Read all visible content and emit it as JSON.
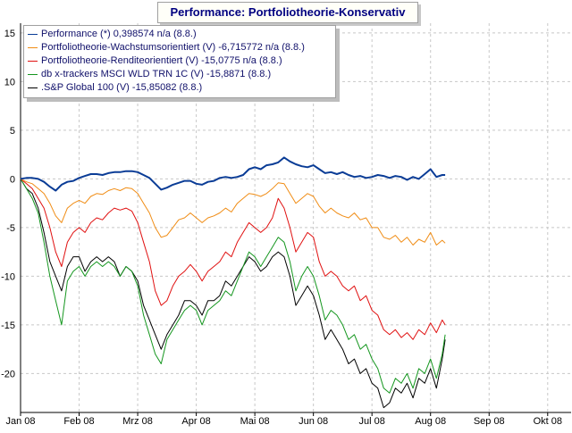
{
  "chart_data": {
    "type": "line",
    "title": "Performance: Portfoliotheorie-Konservativ",
    "xlabel": "",
    "ylabel": "",
    "x_tick_labels": [
      "Jan 08",
      "Feb 08",
      "Mrz 08",
      "Apr 08",
      "Mai 08",
      "Jun 08",
      "Jul 08",
      "Aug 08",
      "Sep 08",
      "Okt 08"
    ],
    "xlim": [
      0,
      9.4
    ],
    "ylim": [
      -24,
      16
    ],
    "y_ticks": [
      15,
      10,
      5,
      0,
      -5,
      -10,
      -15,
      -20
    ],
    "grid": true,
    "legend_position": "top-left",
    "series": [
      {
        "name": "Performance (*) 0,398574 n/a (8.8.)",
        "color": "#0a3c96",
        "x": [
          0,
          0.1,
          0.2,
          0.3,
          0.4,
          0.5,
          0.6,
          0.7,
          0.8,
          0.9,
          1.0,
          1.1,
          1.2,
          1.3,
          1.4,
          1.5,
          1.6,
          1.7,
          1.8,
          1.9,
          2.0,
          2.1,
          2.2,
          2.3,
          2.4,
          2.5,
          2.6,
          2.7,
          2.8,
          2.9,
          3.0,
          3.1,
          3.2,
          3.3,
          3.4,
          3.5,
          3.6,
          3.7,
          3.8,
          3.9,
          4.0,
          4.1,
          4.2,
          4.3,
          4.4,
          4.5,
          4.6,
          4.7,
          4.8,
          4.9,
          5.0,
          5.1,
          5.2,
          5.3,
          5.4,
          5.5,
          5.6,
          5.7,
          5.8,
          5.9,
          6.0,
          6.1,
          6.2,
          6.3,
          6.4,
          6.5,
          6.6,
          6.7,
          6.8,
          6.9,
          7.0,
          7.1,
          7.2,
          7.25
        ],
        "values": [
          0,
          0.1,
          0.1,
          0,
          -0.3,
          -0.8,
          -1.2,
          -0.6,
          -0.3,
          -0.2,
          0.1,
          0.3,
          0.5,
          0.5,
          0.4,
          0.6,
          0.7,
          0.7,
          0.8,
          0.8,
          0.7,
          0.4,
          0.1,
          -0.5,
          -1.1,
          -0.9,
          -0.6,
          -0.4,
          -0.2,
          -0.2,
          -0.5,
          -0.6,
          -0.3,
          -0.2,
          0.1,
          0.2,
          0.1,
          0.2,
          0.4,
          1.0,
          1.2,
          1.0,
          1.4,
          1.5,
          1.7,
          2.2,
          1.8,
          1.5,
          1.3,
          1.2,
          1.4,
          1.0,
          0.6,
          0.7,
          0.5,
          0.7,
          0.4,
          0.2,
          0.3,
          0.1,
          0.2,
          0.4,
          0.3,
          0.1,
          0.3,
          0.2,
          -0.1,
          0.2,
          0.0,
          0.5,
          1.0,
          0.2,
          0.4,
          0.4
        ]
      },
      {
        "name": "Portfoliotheorie-Wachstumsorientiert (V) -6,715772 n/a (8.8.)",
        "color": "#f08c14",
        "x": [
          0,
          0.1,
          0.2,
          0.3,
          0.4,
          0.5,
          0.6,
          0.7,
          0.8,
          0.9,
          1.0,
          1.1,
          1.2,
          1.3,
          1.4,
          1.5,
          1.6,
          1.7,
          1.8,
          1.9,
          2.0,
          2.1,
          2.2,
          2.3,
          2.4,
          2.5,
          2.6,
          2.7,
          2.8,
          2.9,
          3.0,
          3.1,
          3.2,
          3.3,
          3.4,
          3.5,
          3.6,
          3.7,
          3.8,
          3.9,
          4.0,
          4.1,
          4.2,
          4.3,
          4.4,
          4.5,
          4.6,
          4.7,
          4.8,
          4.9,
          5.0,
          5.1,
          5.2,
          5.3,
          5.4,
          5.5,
          5.6,
          5.7,
          5.8,
          5.9,
          6.0,
          6.1,
          6.2,
          6.3,
          6.4,
          6.5,
          6.6,
          6.7,
          6.8,
          6.9,
          7.0,
          7.1,
          7.2,
          7.25
        ],
        "values": [
          0,
          -0.3,
          -0.5,
          -1.0,
          -1.5,
          -2.5,
          -3.8,
          -4.5,
          -3.0,
          -2.5,
          -2.2,
          -2.5,
          -1.8,
          -1.5,
          -1.6,
          -1.2,
          -1.0,
          -1.2,
          -0.9,
          -1.0,
          -1.5,
          -2.5,
          -3.5,
          -5.0,
          -6.0,
          -5.8,
          -5.0,
          -4.2,
          -4.0,
          -3.5,
          -4.0,
          -4.5,
          -4.0,
          -3.8,
          -3.5,
          -3.0,
          -3.4,
          -2.5,
          -2.0,
          -1.5,
          -1.6,
          -1.8,
          -1.5,
          -1.0,
          -0.4,
          -0.5,
          -1.5,
          -2.5,
          -2.0,
          -1.5,
          -1.8,
          -2.8,
          -3.5,
          -3.0,
          -3.5,
          -3.8,
          -4.0,
          -3.5,
          -4.2,
          -4.0,
          -5.0,
          -5.0,
          -6.0,
          -6.2,
          -5.8,
          -6.5,
          -6.0,
          -6.8,
          -6.2,
          -6.5,
          -5.5,
          -6.8,
          -6.3,
          -6.6
        ]
      },
      {
        "name": "Portfoliotheorie-Renditeorientiert (V) -15,0775 n/a (8.8.)",
        "color": "#e01010",
        "x": [
          0,
          0.1,
          0.2,
          0.3,
          0.4,
          0.5,
          0.6,
          0.7,
          0.8,
          0.9,
          1.0,
          1.1,
          1.2,
          1.3,
          1.4,
          1.5,
          1.6,
          1.7,
          1.8,
          1.9,
          2.0,
          2.1,
          2.2,
          2.3,
          2.4,
          2.5,
          2.6,
          2.7,
          2.8,
          2.9,
          3.0,
          3.1,
          3.2,
          3.3,
          3.4,
          3.5,
          3.6,
          3.7,
          3.8,
          3.9,
          4.0,
          4.1,
          4.2,
          4.3,
          4.4,
          4.5,
          4.6,
          4.7,
          4.8,
          4.9,
          5.0,
          5.1,
          5.2,
          5.3,
          5.4,
          5.5,
          5.6,
          5.7,
          5.8,
          5.9,
          6.0,
          6.1,
          6.2,
          6.3,
          6.4,
          6.5,
          6.6,
          6.7,
          6.8,
          6.9,
          7.0,
          7.1,
          7.2,
          7.25
        ],
        "values": [
          0,
          -0.5,
          -1.0,
          -2.0,
          -3.0,
          -5.0,
          -7.5,
          -9.0,
          -6.5,
          -5.5,
          -5.0,
          -5.5,
          -4.5,
          -4.0,
          -4.2,
          -3.5,
          -3.0,
          -3.2,
          -3.0,
          -3.3,
          -4.5,
          -6.5,
          -8.5,
          -11.5,
          -13.0,
          -12.5,
          -11.0,
          -10.0,
          -9.5,
          -8.8,
          -9.5,
          -10.5,
          -9.5,
          -9.0,
          -8.5,
          -7.5,
          -8.0,
          -6.5,
          -5.5,
          -4.5,
          -5.0,
          -5.5,
          -5.0,
          -4.0,
          -2.0,
          -3.0,
          -5.0,
          -7.5,
          -6.5,
          -5.5,
          -6.0,
          -8.5,
          -10.0,
          -9.5,
          -10.0,
          -11.0,
          -11.5,
          -11.0,
          -12.5,
          -12.0,
          -13.5,
          -14.0,
          -15.5,
          -16.0,
          -15.5,
          -16.3,
          -15.8,
          -16.5,
          -15.5,
          -16.0,
          -14.8,
          -15.8,
          -14.5,
          -15.0
        ]
      },
      {
        "name": "db x-trackers MSCI WLD TRN 1C (V) -15,8871 (8.8.)",
        "color": "#14961e",
        "x": [
          0,
          0.1,
          0.2,
          0.3,
          0.4,
          0.5,
          0.6,
          0.7,
          0.8,
          0.9,
          1.0,
          1.1,
          1.2,
          1.3,
          1.4,
          1.5,
          1.6,
          1.7,
          1.8,
          1.9,
          2.0,
          2.1,
          2.2,
          2.3,
          2.4,
          2.5,
          2.6,
          2.7,
          2.8,
          2.9,
          3.0,
          3.1,
          3.2,
          3.3,
          3.4,
          3.5,
          3.6,
          3.7,
          3.8,
          3.9,
          4.0,
          4.1,
          4.2,
          4.3,
          4.4,
          4.5,
          4.6,
          4.7,
          4.8,
          4.9,
          5.0,
          5.1,
          5.2,
          5.3,
          5.4,
          5.5,
          5.6,
          5.7,
          5.8,
          5.9,
          6.0,
          6.1,
          6.2,
          6.3,
          6.4,
          6.5,
          6.6,
          6.7,
          6.8,
          6.9,
          7.0,
          7.1,
          7.2,
          7.25
        ],
        "values": [
          0,
          -1.0,
          -2.0,
          -3.5,
          -6.5,
          -10.0,
          -12.5,
          -15.0,
          -10.5,
          -9.5,
          -9.0,
          -10.0,
          -9.0,
          -8.5,
          -9.0,
          -8.5,
          -9.0,
          -10.0,
          -9.0,
          -9.5,
          -11.0,
          -14.0,
          -16.0,
          -18.0,
          -19.0,
          -16.5,
          -15.5,
          -14.5,
          -13.5,
          -13.0,
          -13.5,
          -15.0,
          -13.5,
          -13.0,
          -12.5,
          -11.5,
          -12.0,
          -10.5,
          -9.0,
          -7.5,
          -8.0,
          -9.0,
          -8.0,
          -7.0,
          -6.0,
          -6.5,
          -8.5,
          -11.5,
          -10.0,
          -9.0,
          -10.0,
          -12.0,
          -14.5,
          -13.5,
          -14.0,
          -15.0,
          -16.5,
          -16.0,
          -17.5,
          -17.0,
          -18.5,
          -19.5,
          -21.5,
          -22.0,
          -20.5,
          -21.0,
          -20.0,
          -21.5,
          -19.5,
          -20.0,
          -18.5,
          -20.5,
          -18.0,
          -16.0
        ]
      },
      {
        "name": ".S&P Global 100 (V) -15,85082 (8.8.)",
        "color": "#000000",
        "x": [
          0,
          0.1,
          0.2,
          0.3,
          0.4,
          0.5,
          0.6,
          0.7,
          0.8,
          0.9,
          1.0,
          1.1,
          1.2,
          1.3,
          1.4,
          1.5,
          1.6,
          1.7,
          1.8,
          1.9,
          2.0,
          2.1,
          2.2,
          2.3,
          2.4,
          2.5,
          2.6,
          2.7,
          2.8,
          2.9,
          3.0,
          3.1,
          3.2,
          3.3,
          3.4,
          3.5,
          3.6,
          3.7,
          3.8,
          3.9,
          4.0,
          4.1,
          4.2,
          4.3,
          4.4,
          4.5,
          4.6,
          4.7,
          4.8,
          4.9,
          5.0,
          5.1,
          5.2,
          5.3,
          5.4,
          5.5,
          5.6,
          5.7,
          5.8,
          5.9,
          6.0,
          6.1,
          6.2,
          6.3,
          6.4,
          6.5,
          6.6,
          6.7,
          6.8,
          6.9,
          7.0,
          7.1,
          7.2,
          7.25
        ],
        "values": [
          0,
          -1.0,
          -1.5,
          -3.0,
          -5.5,
          -8.5,
          -10.0,
          -11.5,
          -9.0,
          -8.0,
          -8.0,
          -9.5,
          -8.5,
          -8.0,
          -8.5,
          -8.0,
          -8.5,
          -10.0,
          -9.0,
          -9.5,
          -10.5,
          -13.0,
          -14.5,
          -16.0,
          -17.5,
          -16.0,
          -15.0,
          -14.0,
          -12.5,
          -12.5,
          -13.0,
          -14.0,
          -12.5,
          -12.5,
          -12.0,
          -10.5,
          -11.0,
          -10.0,
          -9.0,
          -8.0,
          -8.5,
          -9.5,
          -9.0,
          -8.0,
          -7.5,
          -8.0,
          -10.0,
          -13.0,
          -12.0,
          -11.0,
          -12.0,
          -14.0,
          -16.5,
          -15.5,
          -16.5,
          -17.5,
          -19.0,
          -18.5,
          -20.0,
          -19.5,
          -21.0,
          -21.5,
          -23.5,
          -23.0,
          -21.5,
          -22.0,
          -21.0,
          -22.5,
          -20.5,
          -21.0,
          -19.5,
          -21.5,
          -18.5,
          -16.5
        ]
      }
    ]
  }
}
